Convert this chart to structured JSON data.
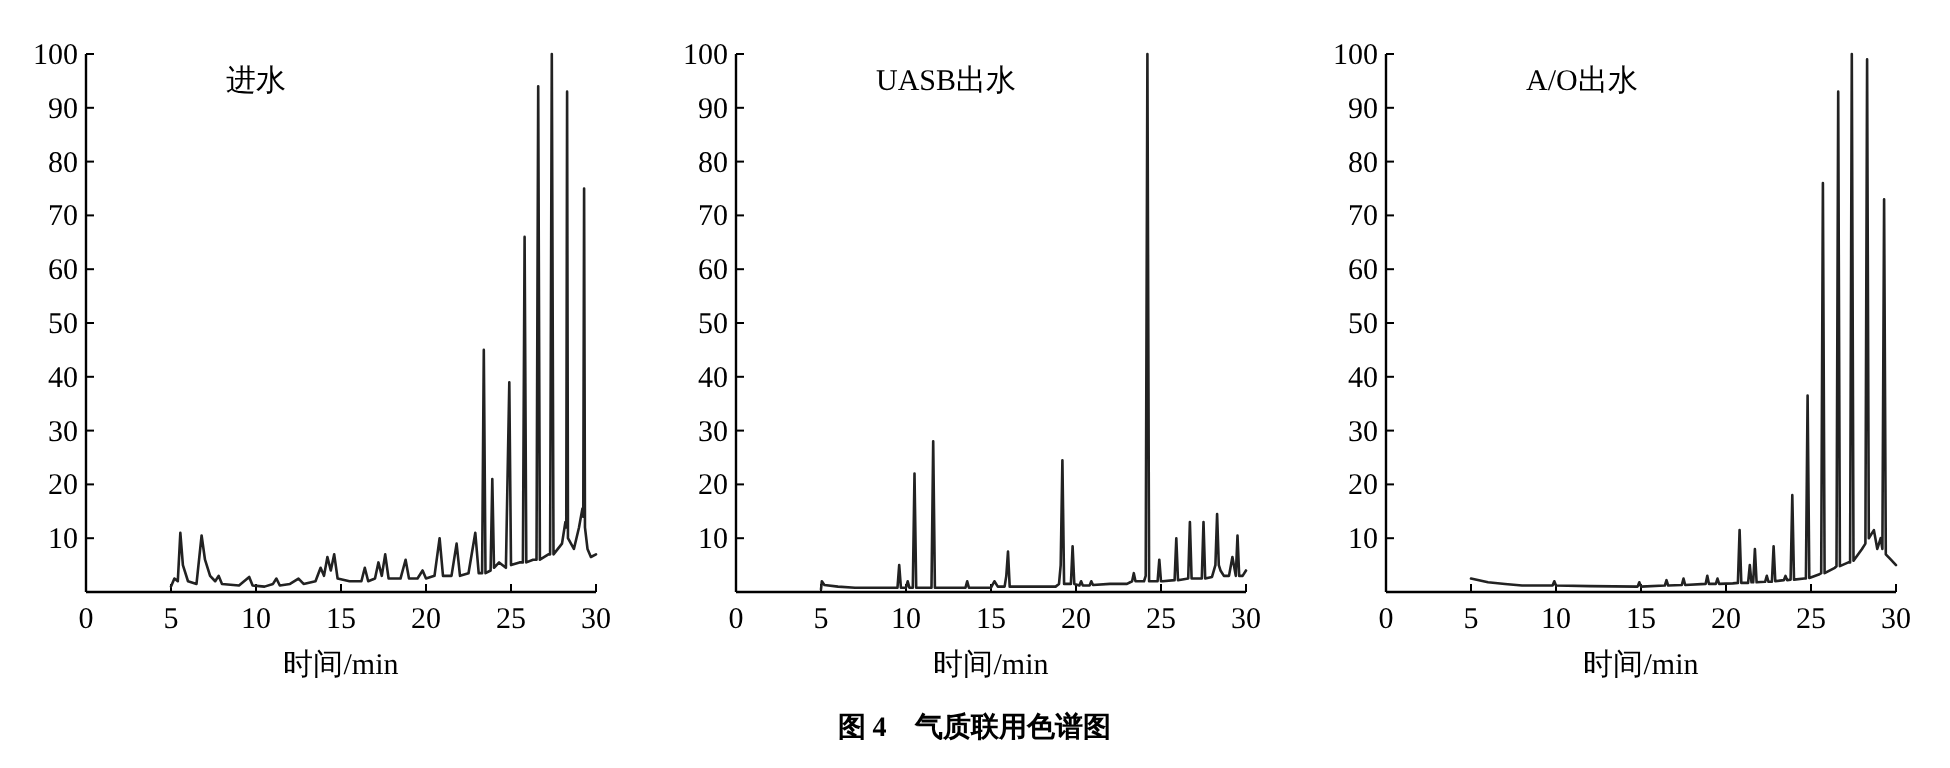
{
  "chart_data": [
    {
      "type": "line",
      "title": "进水",
      "xlabel": "时间/min",
      "xlim": [
        0,
        30
      ],
      "ylim": [
        0,
        100
      ],
      "xticks": [
        0,
        5,
        10,
        15,
        20,
        25,
        30
      ],
      "yticks": [
        10,
        20,
        30,
        40,
        50,
        60,
        70,
        80,
        90,
        100
      ],
      "grid": false,
      "marker": "none",
      "line_style": "solid",
      "annotations": [
        "图 4　气质联用色谱图"
      ],
      "series": [
        {
          "color": "#222222",
          "x": [
            5.0,
            5.2,
            5.4,
            5.55,
            5.7,
            6.0,
            6.5,
            6.8,
            7.0,
            7.3,
            7.6,
            7.8,
            8.0,
            9.0,
            9.6,
            9.8,
            10.5,
            11.0,
            11.2,
            11.4,
            12.0,
            12.5,
            12.8,
            13.5,
            13.8,
            14.0,
            14.2,
            14.4,
            14.6,
            14.8,
            15.5,
            16.2,
            16.4,
            16.6,
            17.0,
            17.2,
            17.4,
            17.6,
            17.8,
            18.5,
            18.8,
            19.0,
            19.5,
            19.8,
            20.0,
            20.5,
            20.8,
            21.0,
            21.5,
            21.8,
            22.0,
            22.5,
            22.9,
            23.1,
            23.3,
            23.4,
            23.5,
            23.8,
            23.9,
            24.0,
            24.3,
            24.7,
            24.9,
            25.0,
            25.5,
            25.7,
            25.8,
            25.9,
            26.3,
            26.5,
            26.6,
            26.7,
            27.2,
            27.3,
            27.4,
            27.5,
            28.0,
            28.2,
            28.25,
            28.3,
            28.35,
            28.7,
            29.0,
            29.2,
            29.25,
            29.3,
            29.35,
            29.5,
            29.7,
            30.0
          ],
          "values": [
            1,
            2.5,
            2,
            11,
            5,
            2,
            1.5,
            10.5,
            6,
            3,
            2,
            3,
            1.5,
            1.2,
            2.8,
            1.2,
            1,
            1.5,
            2.5,
            1.2,
            1.5,
            2.5,
            1.5,
            2,
            4.5,
            3,
            6.5,
            4,
            7,
            2.5,
            2,
            2,
            4.5,
            2,
            2.5,
            5.5,
            3,
            7,
            2.5,
            2.5,
            6,
            2.5,
            2.5,
            4,
            2.5,
            3,
            10,
            3,
            3,
            9,
            3,
            3.5,
            11,
            3.5,
            3.5,
            45,
            3.5,
            4,
            21,
            4.5,
            5.5,
            4.5,
            39,
            5,
            5.5,
            5.5,
            66,
            5.5,
            6,
            6,
            94,
            6,
            7,
            7,
            100,
            7,
            9,
            13,
            12,
            93,
            10,
            8,
            12,
            15.5,
            14,
            75,
            12,
            8,
            6.5,
            7
          ]
        }
      ]
    },
    {
      "type": "line",
      "title": "UASB出水",
      "xlabel": "时间/min",
      "xlim": [
        0,
        30
      ],
      "ylim": [
        0,
        100
      ],
      "xticks": [
        0,
        5,
        10,
        15,
        20,
        25,
        30
      ],
      "yticks": [
        10,
        20,
        30,
        40,
        50,
        60,
        70,
        80,
        90,
        100
      ],
      "grid": false,
      "marker": "none",
      "line_style": "solid",
      "series": [
        {
          "color": "#222222",
          "x": [
            5.0,
            5.05,
            5.2,
            6,
            7,
            8,
            9,
            9.5,
            9.6,
            9.7,
            10.0,
            10.1,
            10.2,
            10.4,
            10.5,
            10.6,
            11.0,
            11.5,
            11.6,
            11.7,
            12,
            13.5,
            13.6,
            13.7,
            15,
            15.2,
            15.4,
            15.8,
            15.9,
            16.0,
            16.1,
            17,
            18,
            18.8,
            19.0,
            19.1,
            19.2,
            19.3,
            19.7,
            19.8,
            19.9,
            20.2,
            20.3,
            20.4,
            20.8,
            20.9,
            21,
            22,
            23,
            23.3,
            23.4,
            23.5,
            24.0,
            24.1,
            24.2,
            24.3,
            24.8,
            24.9,
            25.0,
            25.1,
            25.8,
            25.9,
            26.0,
            26.6,
            26.7,
            26.8,
            27.4,
            27.5,
            27.6,
            28.0,
            28.2,
            28.3,
            28.4,
            28.5,
            28.7,
            29.0,
            29.2,
            29.4,
            29.5,
            29.6,
            29.8,
            30.0
          ],
          "values": [
            0.5,
            2,
            1.3,
            1,
            0.8,
            0.8,
            0.8,
            0.8,
            5,
            0.8,
            0.8,
            2,
            0.8,
            0.8,
            22,
            0.8,
            0.8,
            0.8,
            28,
            0.8,
            0.8,
            0.8,
            2,
            0.8,
            0.8,
            2,
            1,
            1,
            3,
            7.5,
            1,
            1,
            1,
            1,
            1.5,
            5,
            24.5,
            1.5,
            1.5,
            8.5,
            1.5,
            1.2,
            2,
            1.2,
            1.2,
            2,
            1.3,
            1.5,
            1.5,
            2,
            3.5,
            2,
            2,
            3,
            100,
            2,
            2,
            6,
            2,
            2,
            2.2,
            10,
            2.2,
            2.5,
            13,
            2.5,
            2.5,
            13,
            2.5,
            2.8,
            5,
            14.5,
            5,
            4,
            3,
            3,
            6.5,
            3,
            10.5,
            3,
            3,
            4
          ]
        }
      ]
    },
    {
      "type": "line",
      "title": "A/O出水",
      "xlabel": "时间/min",
      "xlim": [
        0,
        30
      ],
      "ylim": [
        0,
        100
      ],
      "xticks": [
        0,
        5,
        10,
        15,
        20,
        25,
        30
      ],
      "yticks": [
        10,
        20,
        30,
        40,
        50,
        60,
        70,
        80,
        90,
        100
      ],
      "grid": false,
      "marker": "none",
      "line_style": "solid",
      "series": [
        {
          "color": "#222222",
          "x": [
            5.0,
            6,
            7,
            8,
            9.8,
            9.9,
            10,
            12,
            14.8,
            14.9,
            15,
            16.4,
            16.5,
            16.6,
            17.4,
            17.5,
            17.6,
            18.8,
            18.9,
            19.0,
            19.4,
            19.5,
            19.6,
            20.4,
            20.7,
            20.8,
            20.9,
            21.3,
            21.4,
            21.5,
            21.6,
            21.7,
            21.8,
            22.3,
            22.4,
            22.5,
            22.7,
            22.8,
            22.9,
            23.4,
            23.5,
            23.6,
            23.8,
            23.9,
            24.0,
            24.6,
            24.7,
            24.8,
            24.9,
            25.5,
            25.6,
            25.7,
            25.8,
            26.4,
            26.5,
            26.6,
            26.7,
            27.2,
            27.3,
            27.4,
            27.5,
            28.0,
            28.2,
            28.3,
            28.4,
            28.7,
            28.9,
            29.1,
            29.2,
            29.3,
            29.4,
            29.7,
            30.0
          ],
          "values": [
            2.5,
            1.8,
            1.5,
            1.2,
            1.2,
            2,
            1.2,
            1.1,
            1,
            1.8,
            1,
            1.2,
            2.2,
            1.2,
            1.3,
            2.5,
            1.3,
            1.5,
            3,
            1.5,
            1.5,
            2.5,
            1.5,
            1.6,
            1.7,
            11.5,
            1.7,
            1.7,
            5,
            1.8,
            1.8,
            8,
            1.8,
            1.9,
            3,
            1.9,
            1.9,
            8.5,
            2,
            2.2,
            3,
            2.2,
            2.3,
            18,
            2.3,
            2.5,
            2.5,
            36.5,
            2.6,
            3.3,
            3.5,
            76,
            3.5,
            4.5,
            4.8,
            93,
            4.8,
            5.5,
            5.5,
            100,
            5.8,
            8,
            9,
            99,
            10,
            11.5,
            8,
            10,
            8,
            73,
            7,
            6,
            5
          ]
        }
      ]
    }
  ]
}
